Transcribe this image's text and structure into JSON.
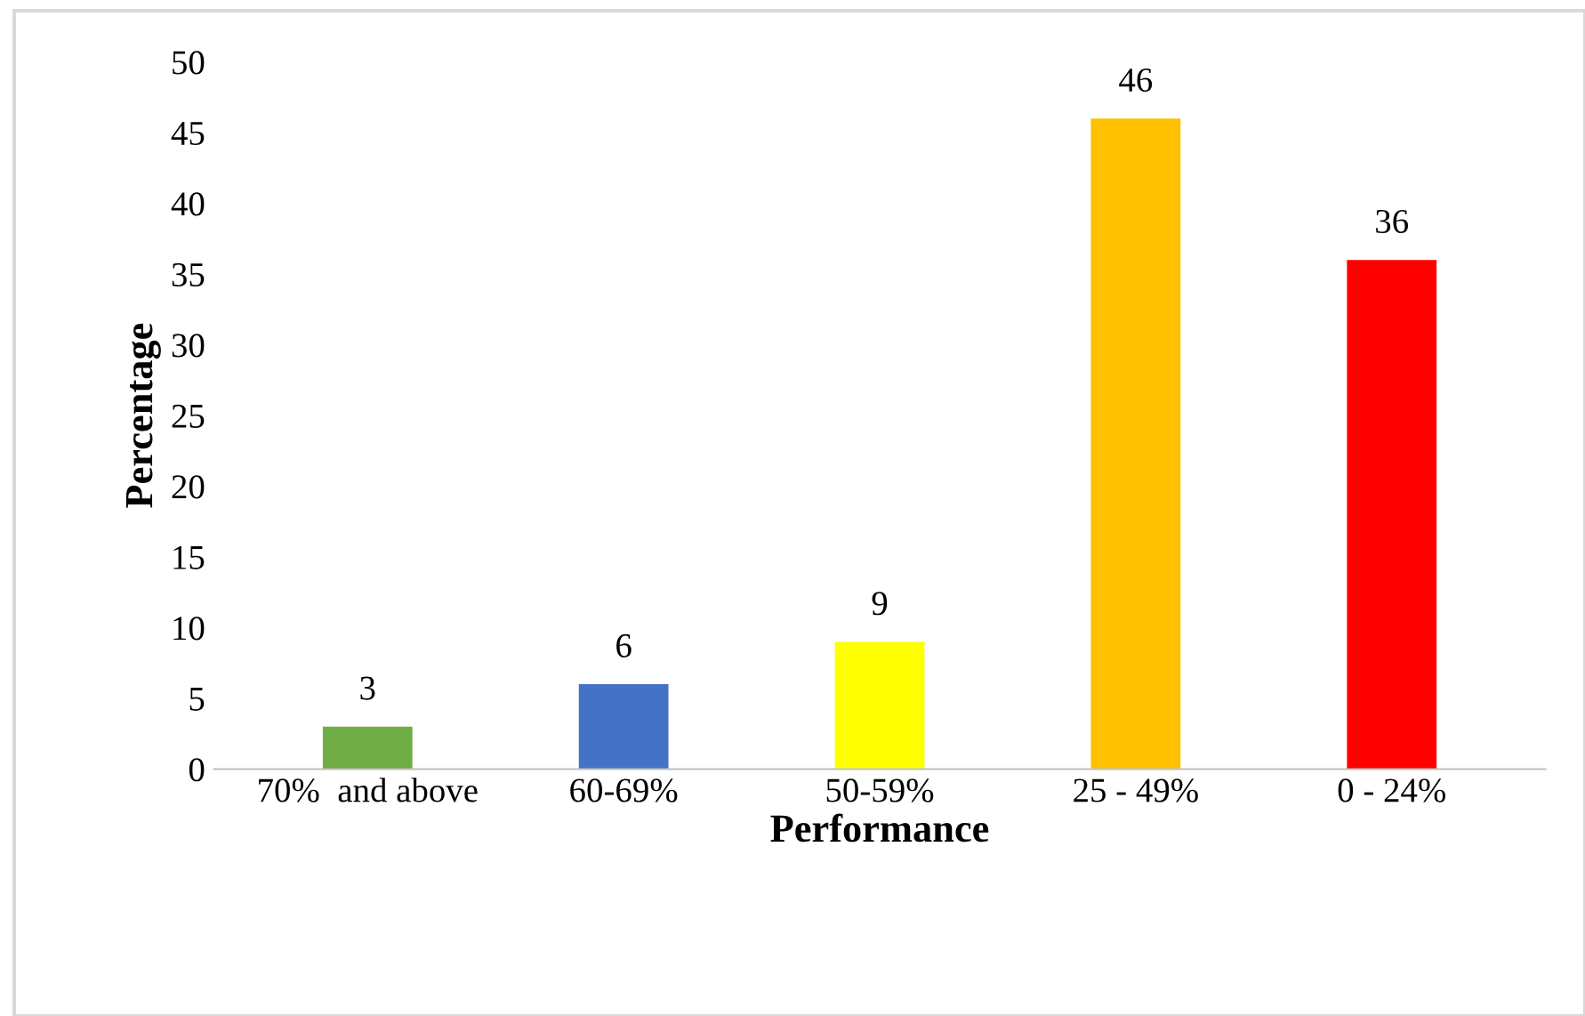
{
  "chart_data": {
    "type": "bar",
    "xlabel": "Performance",
    "ylabel": "Percentage",
    "categories": [
      "70%  and above",
      "60-69%",
      "50-59%",
      "25 - 49%",
      "0 - 24%"
    ],
    "values": [
      3,
      6,
      9,
      46,
      36
    ],
    "colors": [
      "#70ad47",
      "#4472c4",
      "#ffff00",
      "#ffc000",
      "#ff0000"
    ],
    "ylim": [
      0,
      50
    ],
    "yticks": [
      0,
      5,
      10,
      15,
      20,
      25,
      30,
      35,
      40,
      45,
      50
    ],
    "data_labels": true,
    "grid": false,
    "legend": false
  }
}
